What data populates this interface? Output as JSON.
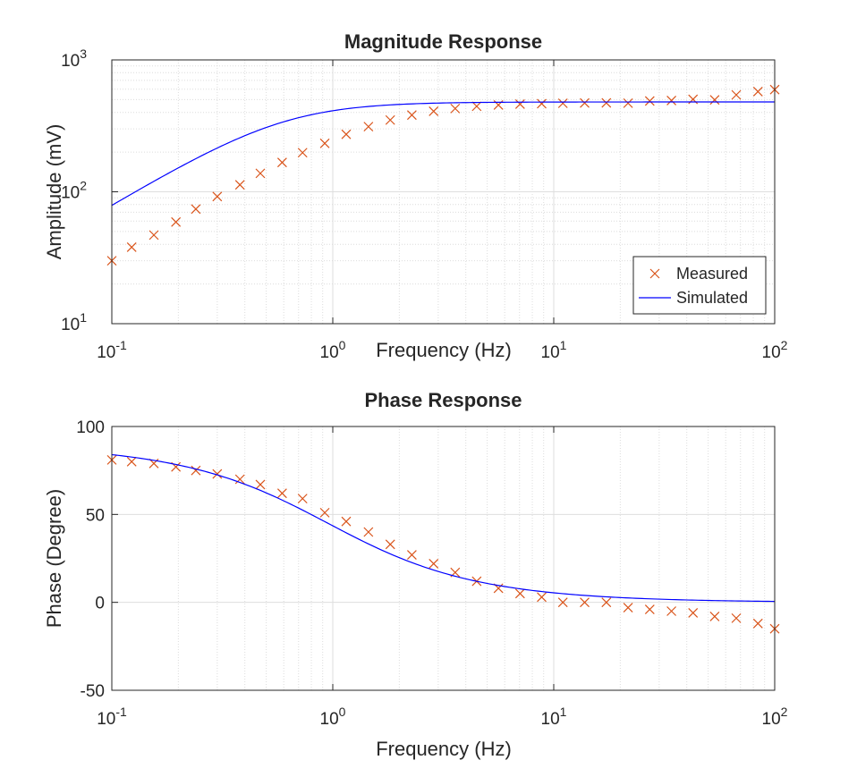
{
  "chart_data": [
    {
      "type": "line",
      "title": "Magnitude Response",
      "xlabel": "Frequency (Hz)",
      "ylabel": "Amplitude (mV)",
      "xscale": "log",
      "yscale": "log",
      "xlim": [
        0.1,
        100
      ],
      "ylim": [
        10,
        1000
      ],
      "grid": true,
      "minor_grid": true,
      "legend_position": "bottom-right",
      "x_ticks": [
        {
          "base": "10",
          "exp": "-1"
        },
        {
          "base": "10",
          "exp": "0"
        },
        {
          "base": "10",
          "exp": "1"
        },
        {
          "base": "10",
          "exp": "2"
        }
      ],
      "y_ticks": [
        {
          "base": "10",
          "exp": "1"
        },
        {
          "base": "10",
          "exp": "2"
        },
        {
          "base": "10",
          "exp": "3"
        }
      ],
      "series": [
        {
          "name": "Measured",
          "marker": "x",
          "color": "#D95319",
          "x": [
            0.1,
            0.123,
            0.155,
            0.195,
            0.24,
            0.3,
            0.38,
            0.47,
            0.59,
            0.73,
            0.92,
            1.15,
            1.45,
            1.82,
            2.28,
            2.86,
            3.58,
            4.48,
            5.62,
            7.04,
            8.82,
            11.0,
            13.8,
            17.3,
            21.7,
            27.2,
            34.1,
            42.7,
            53.5,
            67.0,
            84.0,
            100.0
          ],
          "y": [
            30,
            38,
            47,
            59,
            74,
            92,
            113,
            138,
            167,
            198,
            233,
            273,
            312,
            350,
            382,
            408,
            428,
            445,
            455,
            462,
            466,
            469,
            471,
            472,
            470,
            488,
            492,
            503,
            498,
            543,
            575,
            596
          ]
        },
        {
          "name": "Simulated",
          "marker": "line",
          "color": "#0000FF",
          "model": {
            "type": "first-order-high-pass",
            "gain": 480,
            "fc": 0.6
          }
        }
      ]
    },
    {
      "type": "line",
      "title": "Phase Response",
      "xlabel": "Frequency (Hz)",
      "ylabel": "Phase (Degree)",
      "xscale": "log",
      "yscale": "linear",
      "xlim": [
        0.1,
        100
      ],
      "ylim": [
        -50,
        100
      ],
      "grid": true,
      "minor_grid": true,
      "x_ticks": [
        {
          "base": "10",
          "exp": "-1"
        },
        {
          "base": "10",
          "exp": "0"
        },
        {
          "base": "10",
          "exp": "1"
        },
        {
          "base": "10",
          "exp": "2"
        }
      ],
      "y_ticks": [
        {
          "value": 100,
          "label": "100"
        },
        {
          "value": 50,
          "label": "50"
        },
        {
          "value": 0,
          "label": "0"
        },
        {
          "value": -50,
          "label": "-50"
        }
      ],
      "series": [
        {
          "name": "Measured",
          "marker": "x",
          "color": "#D95319",
          "x": [
            0.1,
            0.123,
            0.155,
            0.195,
            0.24,
            0.3,
            0.38,
            0.47,
            0.59,
            0.73,
            0.92,
            1.15,
            1.45,
            1.82,
            2.28,
            2.86,
            3.58,
            4.48,
            5.62,
            7.04,
            8.82,
            11.0,
            13.8,
            17.3,
            21.7,
            27.2,
            34.1,
            42.7,
            53.5,
            67.0,
            84.0,
            100.0
          ],
          "y": [
            81,
            80,
            79,
            77,
            75,
            73,
            70,
            67,
            62,
            59,
            51,
            46,
            40,
            33,
            27,
            22,
            17,
            12,
            8,
            5,
            3,
            0,
            0,
            0,
            -3,
            -4,
            -5,
            -6,
            -8,
            -9,
            -12,
            -15
          ]
        },
        {
          "name": "Simulated",
          "marker": "line",
          "color": "#0000FF",
          "model": {
            "type": "first-order-high-pass-phase",
            "fc": 0.95
          }
        }
      ]
    }
  ]
}
